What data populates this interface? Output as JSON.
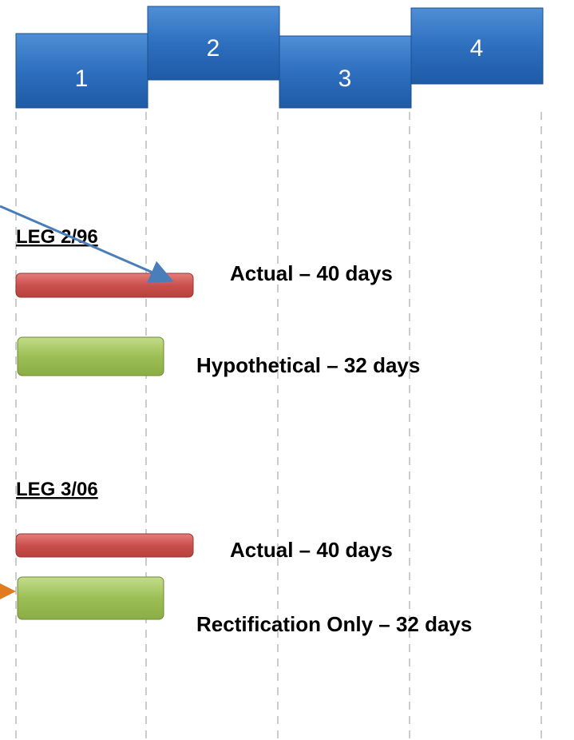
{
  "header": {
    "boxes": [
      "1",
      "2",
      "3",
      "4"
    ]
  },
  "sections": [
    {
      "title": "LEG 2/96",
      "bars": [
        {
          "label": "Actual – 40 days"
        },
        {
          "label": "Hypothetical – 32 days"
        }
      ]
    },
    {
      "title": "LEG 3/06",
      "bars": [
        {
          "label": "Actual – 40 days"
        },
        {
          "label": "Rectification Only – 32 days"
        }
      ]
    }
  ]
}
